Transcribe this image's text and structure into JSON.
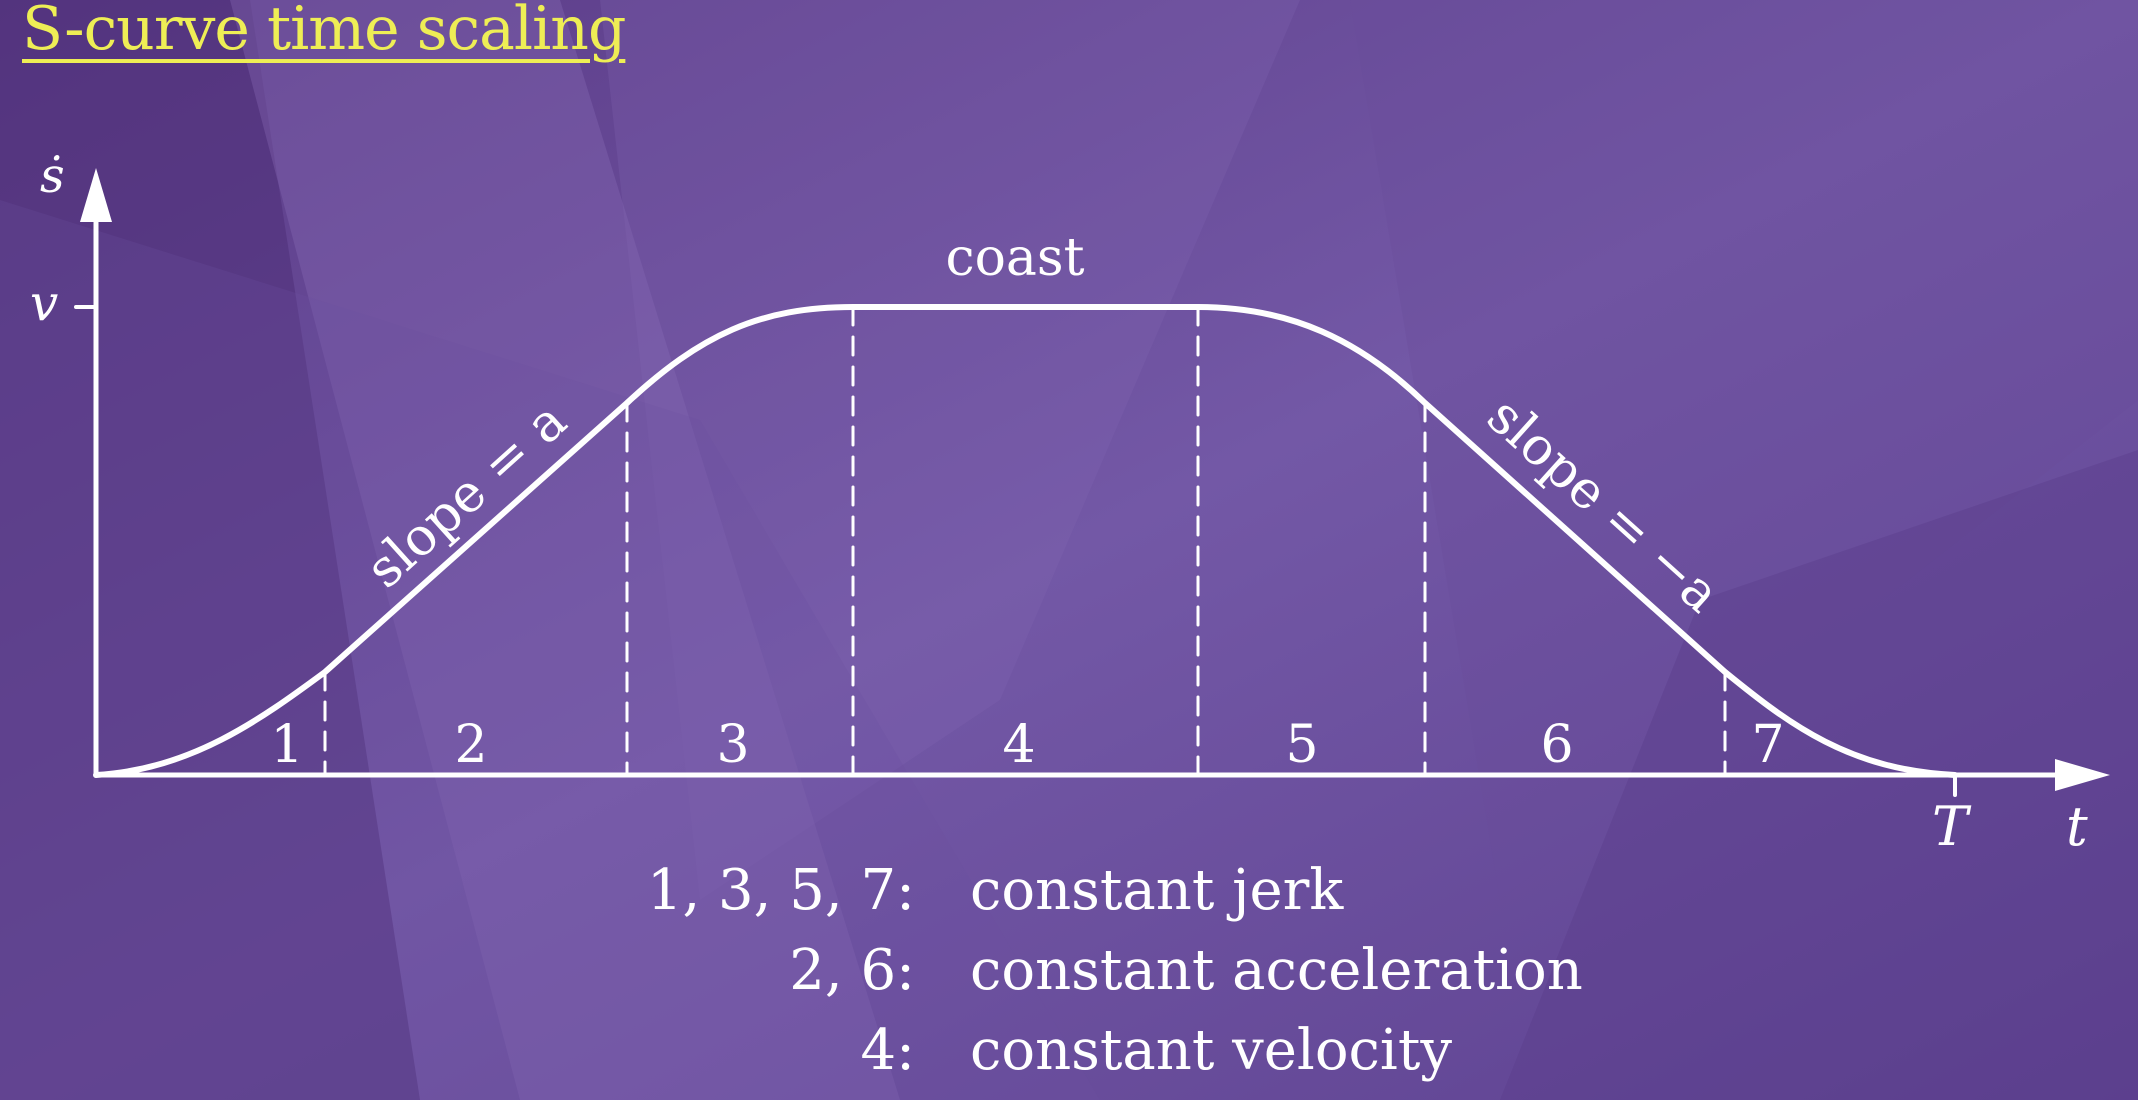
{
  "title": "S-curve time scaling",
  "axes": {
    "y_label": "ṡ",
    "x_label": "t",
    "v_label": "v",
    "T_label": "T"
  },
  "annotations": {
    "coast": "coast",
    "slope_up": "slope = a",
    "slope_down": "slope = −a"
  },
  "segments": [
    "1",
    "2",
    "3",
    "4",
    "5",
    "6",
    "7"
  ],
  "legend": [
    {
      "keys": "1, 3, 5, 7:",
      "desc": "constant jerk"
    },
    {
      "keys": "2, 6:",
      "desc": "constant acceleration"
    },
    {
      "keys": "4:",
      "desc": "constant velocity"
    }
  ],
  "colors": {
    "background": "#6d4f9e",
    "title": "#eeee55",
    "curve": "#ffffff"
  }
}
